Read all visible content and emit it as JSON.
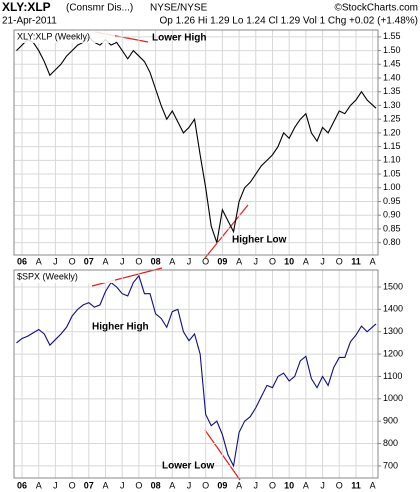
{
  "header": {
    "symbol": "XLY:XLP",
    "name": "(Consmr Dis...)",
    "exchange": "NYSE/NYSE",
    "source": "©StockCharts.com",
    "date": "21-Apr-2011",
    "quote": "Op 1.26  Hi 1.29  Lo 1.24  Cl 1.29  Vol 1  Chg +0.02 (+1.48%)"
  },
  "chart_data": [
    {
      "type": "line",
      "title": "XLY:XLP (Weekly)",
      "color": "#000000",
      "grid": true,
      "annotations": [
        "Lower High",
        "Higher Low"
      ],
      "x": [
        2005.917,
        2006,
        2006.083,
        2006.167,
        2006.25,
        2006.333,
        2006.417,
        2006.5,
        2006.583,
        2006.667,
        2006.75,
        2006.833,
        2006.917,
        2007,
        2007.083,
        2007.167,
        2007.25,
        2007.333,
        2007.417,
        2007.5,
        2007.583,
        2007.667,
        2007.75,
        2007.833,
        2007.917,
        2008,
        2008.083,
        2008.167,
        2008.25,
        2008.333,
        2008.417,
        2008.5,
        2008.583,
        2008.667,
        2008.75,
        2008.833,
        2008.917,
        2009,
        2009.083,
        2009.167,
        2009.25,
        2009.333,
        2009.417,
        2009.5,
        2009.583,
        2009.667,
        2009.75,
        2009.833,
        2009.917,
        2010,
        2010.083,
        2010.167,
        2010.25,
        2010.333,
        2010.417,
        2010.5,
        2010.583,
        2010.667,
        2010.75,
        2010.833,
        2010.917,
        2011,
        2011.083,
        2011.167,
        2011.3
      ],
      "values": [
        1.5,
        1.52,
        1.54,
        1.53,
        1.5,
        1.46,
        1.41,
        1.43,
        1.45,
        1.48,
        1.5,
        1.52,
        1.53,
        1.55,
        1.53,
        1.52,
        1.54,
        1.52,
        1.53,
        1.5,
        1.47,
        1.5,
        1.48,
        1.46,
        1.42,
        1.36,
        1.3,
        1.25,
        1.28,
        1.24,
        1.2,
        1.22,
        1.25,
        1.12,
        1.0,
        0.86,
        0.8,
        0.92,
        0.88,
        0.84,
        0.95,
        1.0,
        1.02,
        1.05,
        1.08,
        1.1,
        1.12,
        1.15,
        1.2,
        1.18,
        1.22,
        1.25,
        1.27,
        1.2,
        1.17,
        1.22,
        1.2,
        1.24,
        1.28,
        1.27,
        1.3,
        1.32,
        1.35,
        1.32,
        1.29
      ],
      "xlim": [
        2005.88,
        2011.33
      ],
      "xticks": [
        {
          "value": 2006,
          "label": "06"
        },
        {
          "value": 2006.25,
          "label": "A"
        },
        {
          "value": 2006.5,
          "label": "J"
        },
        {
          "value": 2006.75,
          "label": "O"
        },
        {
          "value": 2007,
          "label": "07"
        },
        {
          "value": 2007.25,
          "label": "A"
        },
        {
          "value": 2007.5,
          "label": "J"
        },
        {
          "value": 2007.75,
          "label": "O"
        },
        {
          "value": 2008,
          "label": "08"
        },
        {
          "value": 2008.25,
          "label": "A"
        },
        {
          "value": 2008.5,
          "label": "J"
        },
        {
          "value": 2008.75,
          "label": "O"
        },
        {
          "value": 2009,
          "label": "09"
        },
        {
          "value": 2009.25,
          "label": "A"
        },
        {
          "value": 2009.5,
          "label": "J"
        },
        {
          "value": 2009.75,
          "label": "O"
        },
        {
          "value": 2010,
          "label": "10"
        },
        {
          "value": 2010.25,
          "label": "A"
        },
        {
          "value": 2010.5,
          "label": "J"
        },
        {
          "value": 2010.75,
          "label": "O"
        },
        {
          "value": 2011,
          "label": "11"
        },
        {
          "value": 2011.25,
          "label": "A"
        }
      ],
      "ylim": [
        0.755,
        1.575
      ],
      "yticks": [
        {
          "value": 0.8,
          "label": "0.80"
        },
        0.85,
        {
          "value": 0.9,
          "label": "0.90"
        },
        0.95,
        {
          "value": 1,
          "label": "1.00"
        },
        1.05,
        {
          "value": 1.1,
          "label": "1.10"
        },
        1.15,
        {
          "value": 1.2,
          "label": "1.20"
        },
        1.25,
        {
          "value": 1.3,
          "label": "1.30"
        },
        1.35,
        {
          "value": 1.4,
          "label": "1.40"
        },
        1.45,
        {
          "value": 1.5,
          "label": "1.50"
        },
        1.55
      ]
    },
    {
      "type": "line",
      "title": "$SPX (Weekly)",
      "color": "#10107a",
      "grid": true,
      "annotations": [
        "Higher High",
        "Lower Low"
      ],
      "x": [
        2005.917,
        2006,
        2006.083,
        2006.167,
        2006.25,
        2006.333,
        2006.417,
        2006.5,
        2006.583,
        2006.667,
        2006.75,
        2006.833,
        2006.917,
        2007,
        2007.083,
        2007.167,
        2007.25,
        2007.333,
        2007.417,
        2007.5,
        2007.583,
        2007.667,
        2007.75,
        2007.833,
        2007.917,
        2008,
        2008.083,
        2008.167,
        2008.25,
        2008.333,
        2008.417,
        2008.5,
        2008.583,
        2008.667,
        2008.75,
        2008.833,
        2008.917,
        2009,
        2009.083,
        2009.167,
        2009.25,
        2009.333,
        2009.417,
        2009.5,
        2009.583,
        2009.667,
        2009.75,
        2009.833,
        2009.917,
        2010,
        2010.083,
        2010.167,
        2010.25,
        2010.333,
        2010.417,
        2010.5,
        2010.583,
        2010.667,
        2010.75,
        2010.833,
        2010.917,
        2011,
        2011.083,
        2011.167,
        2011.3
      ],
      "values": [
        1250,
        1270,
        1280,
        1295,
        1310,
        1290,
        1240,
        1265,
        1290,
        1320,
        1370,
        1400,
        1420,
        1430,
        1410,
        1420,
        1480,
        1520,
        1500,
        1470,
        1460,
        1520,
        1550,
        1470,
        1470,
        1380,
        1360,
        1320,
        1390,
        1400,
        1300,
        1260,
        1290,
        1200,
        930,
        880,
        900,
        840,
        750,
        700,
        850,
        900,
        920,
        960,
        1010,
        1060,
        1050,
        1100,
        1115,
        1080,
        1100,
        1170,
        1190,
        1090,
        1050,
        1100,
        1060,
        1140,
        1185,
        1185,
        1255,
        1285,
        1325,
        1300,
        1335
      ],
      "xlim": [
        2005.88,
        2011.33
      ],
      "xticks": [
        {
          "value": 2006,
          "label": "06"
        },
        {
          "value": 2006.25,
          "label": "A"
        },
        {
          "value": 2006.5,
          "label": "J"
        },
        {
          "value": 2006.75,
          "label": "O"
        },
        {
          "value": 2007,
          "label": "07"
        },
        {
          "value": 2007.25,
          "label": "A"
        },
        {
          "value": 2007.5,
          "label": "J"
        },
        {
          "value": 2007.75,
          "label": "O"
        },
        {
          "value": 2008,
          "label": "08"
        },
        {
          "value": 2008.25,
          "label": "A"
        },
        {
          "value": 2008.5,
          "label": "J"
        },
        {
          "value": 2008.75,
          "label": "O"
        },
        {
          "value": 2009,
          "label": "09"
        },
        {
          "value": 2009.25,
          "label": "A"
        },
        {
          "value": 2009.5,
          "label": "J"
        },
        {
          "value": 2009.75,
          "label": "O"
        },
        {
          "value": 2010,
          "label": "10"
        },
        {
          "value": 2010.25,
          "label": "A"
        },
        {
          "value": 2010.5,
          "label": "J"
        },
        {
          "value": 2010.75,
          "label": "O"
        },
        {
          "value": 2011,
          "label": "11"
        },
        {
          "value": 2011.25,
          "label": "A"
        }
      ],
      "ylim": [
        646,
        1576
      ],
      "yticks": [
        700,
        800,
        900,
        1000,
        1100,
        1200,
        1300,
        1400,
        1500
      ]
    }
  ]
}
